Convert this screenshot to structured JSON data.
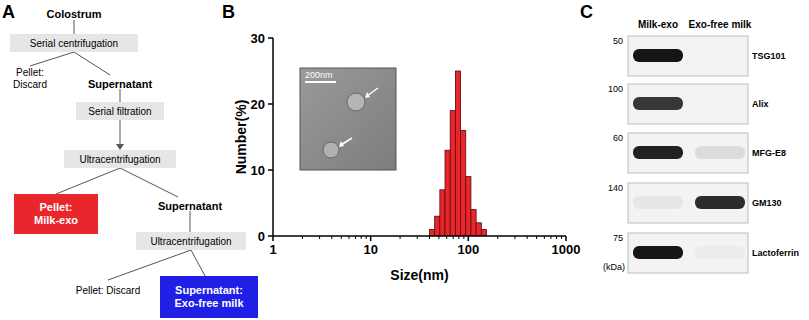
{
  "panel_labels": [
    "A",
    "B",
    "C"
  ],
  "panel_a": {
    "nodes": [
      {
        "lines": [
          "Colostrum"
        ],
        "style": "bold"
      },
      {
        "lines": [
          "Serial centrifugation"
        ],
        "style": "box"
      },
      {
        "lines": [
          "Pellet:",
          "Discard"
        ],
        "style": "plain"
      },
      {
        "lines": [
          "Supernatant"
        ],
        "style": "bold"
      },
      {
        "lines": [
          "Serial filtration"
        ],
        "style": "box"
      },
      {
        "lines": [
          "Ultracentrifugation"
        ],
        "style": "box"
      },
      {
        "lines": [
          "Pellet:",
          "Milk-exo"
        ],
        "style": "filled",
        "color": "#e8262b"
      },
      {
        "lines": [
          "Supernatant"
        ],
        "style": "bold"
      },
      {
        "lines": [
          "Ultracentrifugation"
        ],
        "style": "box"
      },
      {
        "lines": [
          "Pellet: Discard"
        ],
        "style": "plain"
      },
      {
        "lines": [
          "Supernatant:",
          "Exo-free milk"
        ],
        "style": "filled",
        "color": "#1f1fe6"
      }
    ]
  },
  "chart_data": {
    "type": "histogram",
    "x_label": "Size(nm)",
    "y_label": "Number(%)",
    "bins": [
      40,
      45.2,
      51.1,
      57.7,
      65.2,
      73.7,
      83.3,
      94.1,
      106.3,
      120.2,
      135.8,
      153.4
    ],
    "values": [
      1,
      3,
      7,
      13,
      19,
      25,
      16,
      9,
      4,
      2,
      1
    ],
    "color": "#e8262b",
    "log": "x",
    "xlim": [
      1,
      1000
    ],
    "xticks": [
      1,
      10,
      100,
      1000
    ],
    "ylim": [
      0,
      30
    ],
    "yticks": [
      0,
      10,
      20,
      30
    ],
    "grid": false,
    "annotations": [
      "200nm"
    ]
  },
  "panel_c": {
    "lanes": [
      "Milk-exo",
      "Exo-free milk"
    ],
    "unit": "(kDa)",
    "rows": [
      {
        "protein": "TSG101",
        "marker": 50,
        "intensity": [
          1,
          0
        ]
      },
      {
        "protein": "Alix",
        "marker": 100,
        "intensity": [
          0.85,
          0
        ]
      },
      {
        "protein": "MFG-E8",
        "marker": 60,
        "intensity": [
          0.95,
          0.1
        ]
      },
      {
        "protein": "GM130",
        "marker": 140,
        "intensity": [
          0.05,
          0.9
        ]
      },
      {
        "protein": "Lactoferrin",
        "marker": 75,
        "intensity": [
          1,
          0.03
        ]
      }
    ]
  }
}
